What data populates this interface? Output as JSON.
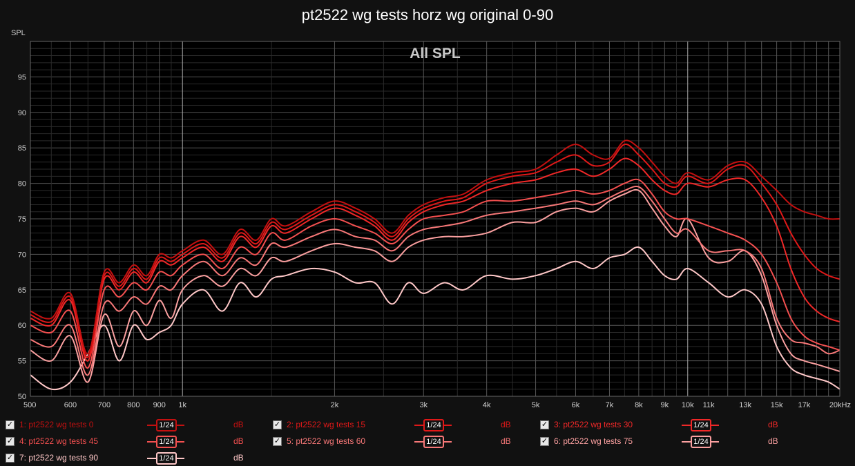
{
  "title": "pt2522 wg tests horz wg original 0-90",
  "watermark": "All SPL",
  "colors": {
    "background": "#111111",
    "plot_background": "#000000",
    "grid_minor": "#2a2a2a",
    "grid_major": "#555555",
    "grid_decade": "#aaaaaa"
  },
  "legend": [
    {
      "index": "1",
      "name": "1: pt2522 wg tests 0",
      "smoothing": "1/24",
      "unit": "dB",
      "checked": true,
      "color": "#c41010"
    },
    {
      "index": "2",
      "name": "2: pt2522 wg tests 15",
      "smoothing": "1/24",
      "unit": "dB",
      "checked": true,
      "color": "#e01818"
    },
    {
      "index": "3",
      "name": "3: pt2522 wg tests 30",
      "smoothing": "1/24",
      "unit": "dB",
      "checked": true,
      "color": "#f02828"
    },
    {
      "index": "4",
      "name": "4: pt2522 wg tests 45",
      "smoothing": "1/24",
      "unit": "dB",
      "checked": true,
      "color": "#f55050"
    },
    {
      "index": "5",
      "name": "5: pt2522 wg tests 60",
      "smoothing": "1/24",
      "unit": "dB",
      "checked": true,
      "color": "#f87878"
    },
    {
      "index": "6",
      "name": "6: pt2522 wg tests 75",
      "smoothing": "1/24",
      "unit": "dB",
      "checked": true,
      "color": "#fba0a0"
    },
    {
      "index": "7",
      "name": "7: pt2522 wg tests 90",
      "smoothing": "1/24",
      "unit": "dB",
      "checked": true,
      "color": "#ffc8c8"
    }
  ],
  "chart_data": {
    "type": "line",
    "title": "pt2522 wg tests horz wg original 0-90",
    "xlabel": "",
    "ylabel": "SPL",
    "xscale": "log",
    "xlim": [
      500,
      20000
    ],
    "ylim": [
      50,
      100
    ],
    "grid": true,
    "legend_position": "bottom",
    "x_ticks": [
      {
        "v": 500,
        "l": "500"
      },
      {
        "v": 600,
        "l": "600"
      },
      {
        "v": 700,
        "l": "700"
      },
      {
        "v": 800,
        "l": "800"
      },
      {
        "v": 900,
        "l": "900"
      },
      {
        "v": 1000,
        "l": "1k"
      },
      {
        "v": 2000,
        "l": "2k"
      },
      {
        "v": 3000,
        "l": "3k"
      },
      {
        "v": 4000,
        "l": "4k"
      },
      {
        "v": 5000,
        "l": "5k"
      },
      {
        "v": 6000,
        "l": "6k"
      },
      {
        "v": 7000,
        "l": "7k"
      },
      {
        "v": 8000,
        "l": "8k"
      },
      {
        "v": 9000,
        "l": "9k"
      },
      {
        "v": 10000,
        "l": "10k"
      },
      {
        "v": 11000,
        "l": "11k"
      },
      {
        "v": 13000,
        "l": "13k"
      },
      {
        "v": 15000,
        "l": "15k"
      },
      {
        "v": 17000,
        "l": "17k"
      },
      {
        "v": 20000,
        "l": "20kHz"
      }
    ],
    "y_ticks": [
      50,
      55,
      60,
      65,
      70,
      75,
      80,
      85,
      90,
      95
    ],
    "x": [
      500,
      550,
      600,
      650,
      700,
      750,
      800,
      850,
      900,
      950,
      1000,
      1100,
      1200,
      1300,
      1400,
      1500,
      1600,
      1800,
      2000,
      2200,
      2400,
      2600,
      2800,
      3000,
      3300,
      3600,
      4000,
      4500,
      5000,
      5500,
      6000,
      6500,
      7000,
      7500,
      8000,
      8500,
      9000,
      9500,
      10000,
      11000,
      12000,
      13000,
      14000,
      15000,
      16000,
      17000,
      18000,
      19000,
      20000
    ],
    "series": [
      {
        "name": "1: pt2522 wg tests 0",
        "values": [
          62,
          61,
          64.5,
          56,
          67.5,
          66,
          68.5,
          67,
          70,
          69.5,
          70.5,
          72,
          70,
          73.5,
          72,
          75,
          74,
          76,
          77.5,
          76.5,
          75,
          73,
          75.5,
          77,
          78,
          78.5,
          80.5,
          81.5,
          82,
          84,
          85.5,
          84,
          83.5,
          86,
          85,
          83,
          81,
          80,
          81.5,
          80.5,
          82.5,
          83,
          81,
          79,
          77,
          76,
          75.5,
          75,
          75
        ]
      },
      {
        "name": "2: pt2522 wg tests 15",
        "values": [
          61.5,
          60.5,
          64,
          55.5,
          67,
          65.5,
          68,
          66.5,
          69.5,
          69,
          70,
          71.5,
          69.5,
          73,
          71.5,
          74.5,
          73.5,
          75.5,
          77,
          76,
          74.5,
          72.5,
          75,
          76.5,
          77.5,
          78,
          80,
          81,
          81.5,
          83,
          84,
          82.5,
          83,
          85.5,
          84,
          82,
          80,
          79.5,
          81,
          80,
          82,
          82.5,
          80,
          77,
          73,
          70,
          68,
          67,
          66.5
        ]
      },
      {
        "name": "3: pt2522 wg tests 30",
        "values": [
          61,
          60,
          63.5,
          55,
          66.5,
          65,
          67.5,
          66,
          69,
          68.5,
          69.5,
          71,
          69,
          72.5,
          71,
          74,
          73,
          75,
          76.5,
          75.5,
          74,
          72,
          74.5,
          76,
          77,
          77.5,
          79,
          80,
          80.5,
          81.5,
          82,
          81,
          82,
          83.5,
          82.5,
          80.5,
          79,
          78.5,
          80,
          79.5,
          80.5,
          80.5,
          78,
          74,
          68,
          64,
          62,
          61,
          60.5
        ]
      },
      {
        "name": "4: pt2522 wg tests 45",
        "values": [
          60,
          59,
          62,
          54,
          65,
          64,
          66,
          65,
          67.5,
          67,
          68.5,
          70,
          68,
          71,
          70,
          73,
          72,
          74,
          75,
          74,
          73,
          71.5,
          73.5,
          75,
          75.5,
          76,
          77.5,
          77.5,
          78,
          78.5,
          79,
          78.5,
          79,
          80,
          80.5,
          78.5,
          76,
          75,
          75,
          74,
          73,
          72,
          70,
          66,
          61,
          58.5,
          57.5,
          57,
          56.5
        ]
      },
      {
        "name": "5: pt2522 wg tests 60",
        "values": [
          58,
          57,
          60,
          53,
          63,
          62,
          64,
          63,
          65.5,
          65,
          67,
          69,
          67,
          69.5,
          68.5,
          71.5,
          71,
          72.5,
          73.5,
          72.5,
          72,
          70.5,
          72.5,
          73.5,
          74,
          74.5,
          75.5,
          76,
          76.5,
          77,
          77.5,
          77,
          78,
          79,
          79.5,
          77.5,
          75,
          73,
          73.5,
          70.5,
          70.5,
          70.5,
          68,
          61,
          58,
          57.5,
          57,
          56,
          56.5
        ]
      },
      {
        "name": "6: pt2522 wg tests 75",
        "values": [
          56.5,
          55,
          58.5,
          52,
          61.5,
          57,
          62,
          60,
          63.5,
          61,
          65,
          67,
          65.5,
          68,
          67,
          69.5,
          69,
          70.5,
          71.5,
          71,
          70.5,
          69,
          71,
          72,
          72.5,
          72.5,
          73,
          74.5,
          74.5,
          76,
          76.5,
          76,
          77.5,
          78.5,
          79,
          76.5,
          74,
          72.5,
          75,
          69.5,
          69,
          70.5,
          67,
          60,
          56,
          55,
          54.5,
          54,
          53.5
        ]
      },
      {
        "name": "7: pt2522 wg tests 90",
        "values": [
          53,
          51,
          52,
          56,
          60,
          55,
          60,
          58,
          59,
          60,
          63,
          65,
          62,
          66,
          64,
          66.5,
          67,
          68,
          67.5,
          66,
          66,
          63,
          66,
          64.5,
          66,
          65,
          67,
          66.5,
          67,
          68,
          69,
          68,
          69.5,
          70,
          71,
          69,
          67,
          66.5,
          68,
          66,
          64,
          65,
          63,
          57,
          54,
          53,
          52.5,
          52,
          51
        ]
      }
    ]
  }
}
